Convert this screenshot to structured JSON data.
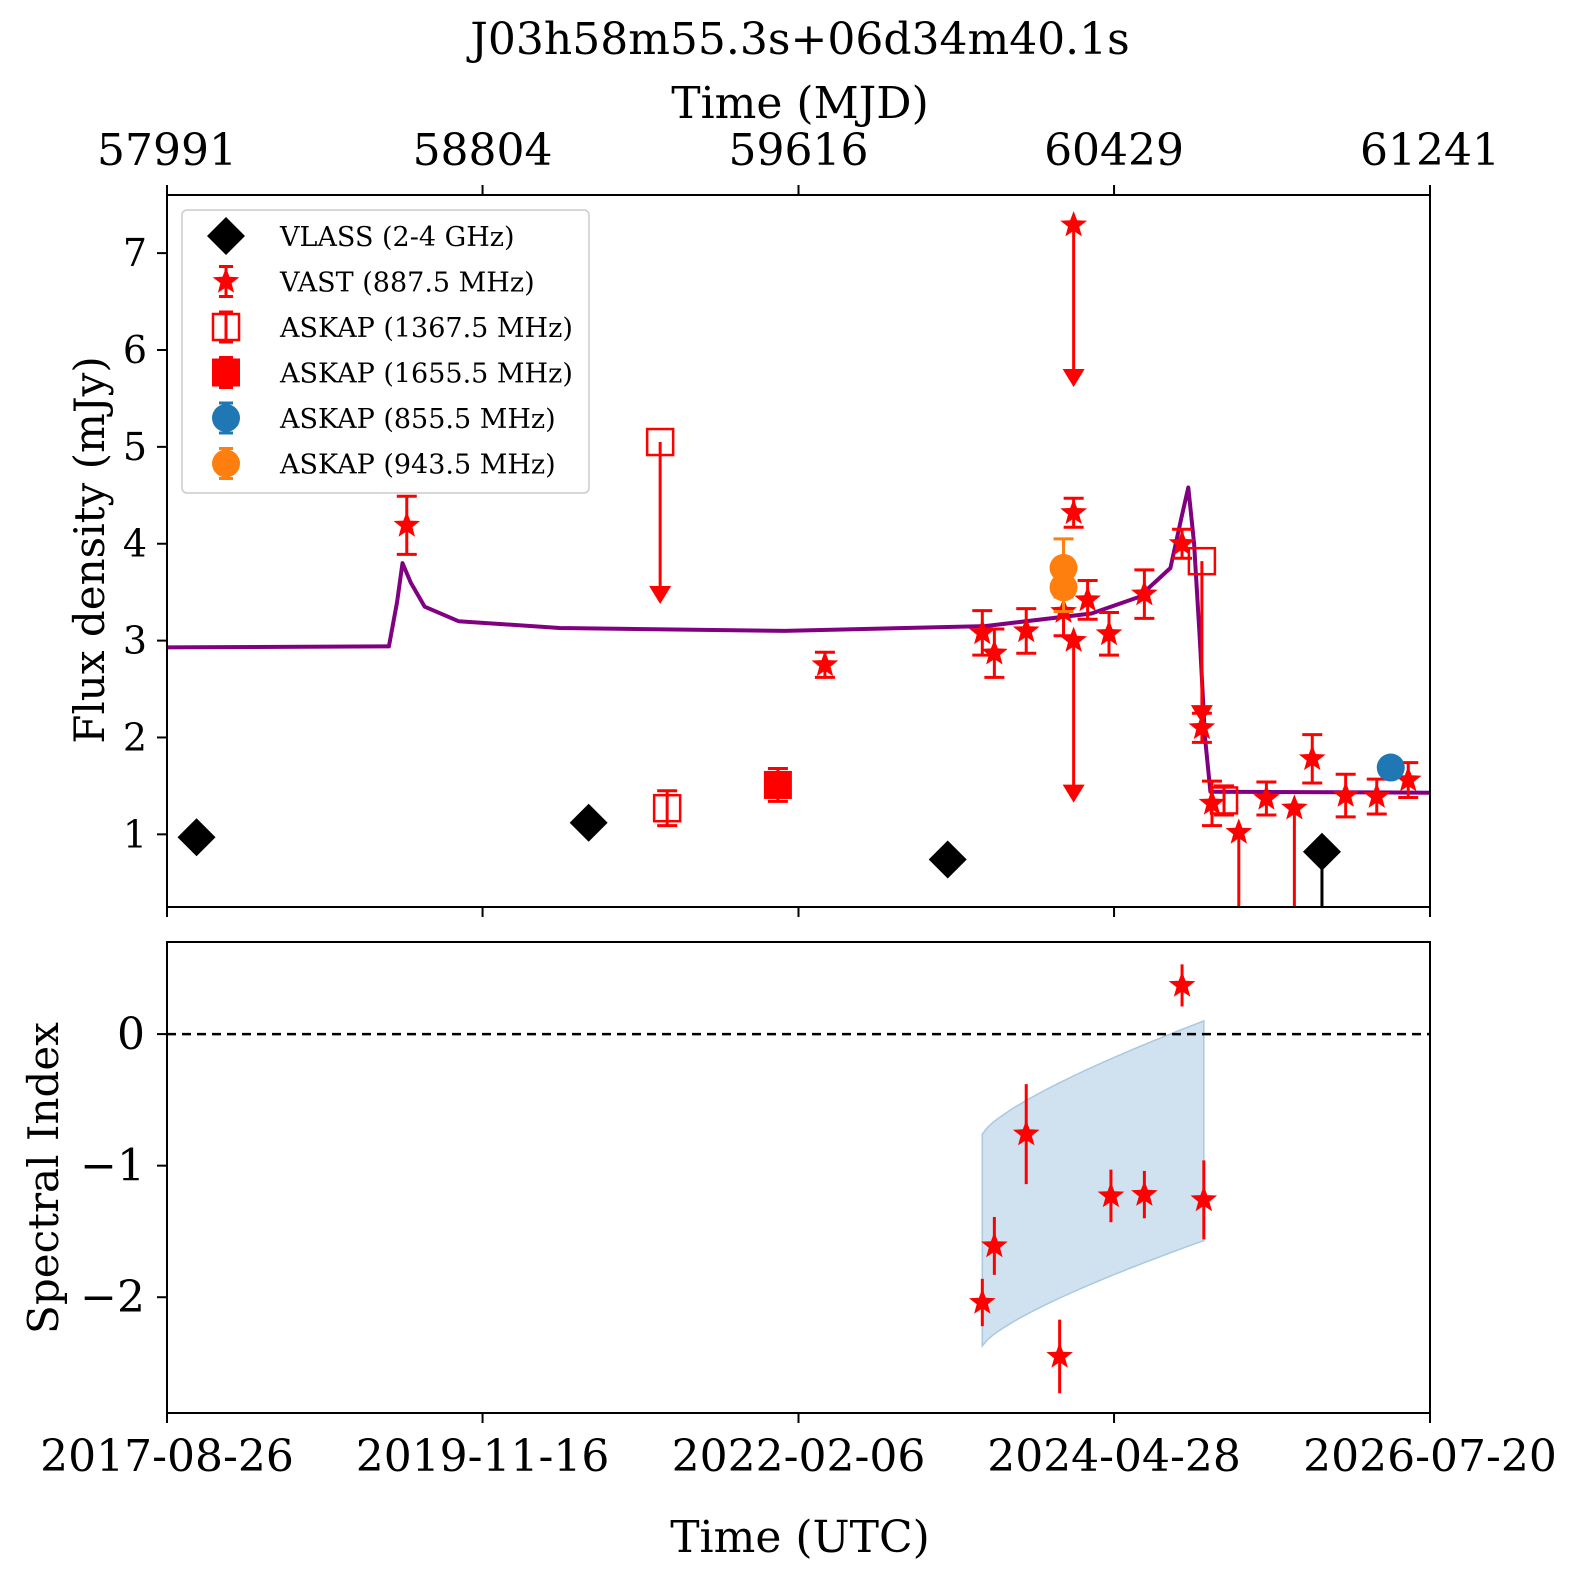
{
  "title": "J03h58m55.3s+06d34m40.1s",
  "colors": {
    "vlass": "#000000",
    "vast": "#ff0000",
    "askap": "#ff0000",
    "askap_855": "#1f77b4",
    "askap_943": "#ff7f0e",
    "model": "#800080",
    "band": "#a9c9e2"
  },
  "legend": {
    "placement": "upper-left",
    "items": [
      {
        "label": "VLASS (2-4 GHz)",
        "marker": "diamond",
        "color": "#000000"
      },
      {
        "label": "VAST (887.5 MHz)",
        "marker": "star",
        "color": "#ff0000"
      },
      {
        "label": "ASKAP (1367.5 MHz)",
        "marker": "square-open",
        "color": "#ff0000"
      },
      {
        "label": "ASKAP (1655.5 MHz)",
        "marker": "square",
        "color": "#ff0000"
      },
      {
        "label": "ASKAP (855.5 MHz)",
        "marker": "circle",
        "color": "#1f77b4"
      },
      {
        "label": "ASKAP (943.5 MHz)",
        "marker": "circle",
        "color": "#ff7f0e"
      }
    ]
  },
  "chart_data": [
    {
      "type": "scatter",
      "panel": "flux",
      "title": "J03h58m55.3s+06d34m40.1s",
      "ylabel": "Flux density (mJy)",
      "top_xlabel": "Time (MJD)",
      "top_ticks": [
        "57991",
        "58804",
        "59616",
        "60429",
        "61241"
      ],
      "xlim": [
        "2017-08-26",
        "2026-07-20"
      ],
      "ylim": [
        0.25,
        7.6
      ],
      "yticks": [
        1,
        2,
        3,
        4,
        5,
        6,
        7
      ],
      "grid": false,
      "series": [
        {
          "name": "VLASS (2-4 GHz)",
          "marker": "diamond",
          "points": [
            {
              "x": "2017-11-10",
              "y": 0.97,
              "err": 0.08
            },
            {
              "x": "2020-08-15",
              "y": 1.12,
              "err": 0.17
            },
            {
              "x": "2023-02-25",
              "y": 0.74,
              "err": 0.08
            },
            {
              "x": "2025-10-15",
              "y": 0.82,
              "upper_limit": true
            }
          ]
        },
        {
          "name": "VAST (887.5 MHz)",
          "marker": "star",
          "points": [
            {
              "x": "2019-05-05",
              "y": 4.19,
              "err": 0.3
            },
            {
              "x": "2022-04-15",
              "y": 2.75,
              "err": 0.13
            },
            {
              "x": "2023-05-25",
              "y": 3.08,
              "err": 0.23
            },
            {
              "x": "2023-06-25",
              "y": 2.87,
              "err": 0.25
            },
            {
              "x": "2023-09-15",
              "y": 3.1,
              "err": 0.23
            },
            {
              "x": "2023-12-20",
              "y": 3.3,
              "err": 0.25
            },
            {
              "x": "2024-01-15",
              "y": 7.29,
              "upper_limit": true
            },
            {
              "x": "2024-01-15",
              "y": 4.32,
              "err": 0.15
            },
            {
              "x": "2024-01-15",
              "y": 3.0,
              "upper_limit": true
            },
            {
              "x": "2024-02-20",
              "y": 3.42,
              "err": 0.2
            },
            {
              "x": "2024-04-15",
              "y": 3.07,
              "err": 0.22
            },
            {
              "x": "2024-07-15",
              "y": 3.48,
              "err": 0.25
            },
            {
              "x": "2024-10-20",
              "y": 4.0,
              "err": 0.15
            },
            {
              "x": "2024-12-10",
              "y": 2.1,
              "err": 0.15
            },
            {
              "x": "2025-01-05",
              "y": 1.32,
              "err": 0.23
            },
            {
              "x": "2025-03-15",
              "y": 1.02,
              "upper_limit": true
            },
            {
              "x": "2025-05-25",
              "y": 1.37,
              "err": 0.17
            },
            {
              "x": "2025-08-05",
              "y": 1.27,
              "upper_limit": true
            },
            {
              "x": "2025-09-20",
              "y": 1.78,
              "err": 0.25
            },
            {
              "x": "2025-12-15",
              "y": 1.4,
              "err": 0.22
            },
            {
              "x": "2026-03-05",
              "y": 1.39,
              "err": 0.18
            },
            {
              "x": "2026-05-25",
              "y": 1.56,
              "err": 0.18
            }
          ]
        },
        {
          "name": "ASKAP (1367.5 MHz)",
          "marker": "square-open",
          "points": [
            {
              "x": "2021-02-15",
              "y": 5.05,
              "upper_limit": true
            },
            {
              "x": "2021-03-05",
              "y": 1.27,
              "err": 0.18
            },
            {
              "x": "2024-12-10",
              "y": 3.82,
              "upper_limit": true
            },
            {
              "x": "2025-02-05",
              "y": 1.35,
              "err": 0.15
            }
          ]
        },
        {
          "name": "ASKAP (1655.5 MHz)",
          "marker": "square",
          "points": [
            {
              "x": "2021-12-15",
              "y": 1.51,
              "err": 0.17
            }
          ]
        },
        {
          "name": "ASKAP (855.5 MHz)",
          "marker": "circle",
          "points": [
            {
              "x": "2026-04-10",
              "y": 1.69,
              "err": 0.04
            }
          ]
        },
        {
          "name": "ASKAP (943.5 MHz)",
          "marker": "circle",
          "points": [
            {
              "x": "2023-12-20",
              "y": 3.75,
              "err": 0.3
            },
            {
              "x": "2023-12-20",
              "y": 3.55,
              "err": 0.25
            }
          ]
        },
        {
          "name": "model",
          "type": "line",
          "points": [
            {
              "x": "2017-08-26",
              "y": 2.93
            },
            {
              "x": "2019-03-20",
              "y": 2.94
            },
            {
              "x": "2019-04-10",
              "y": 3.4
            },
            {
              "x": "2019-04-24",
              "y": 3.8
            },
            {
              "x": "2019-05-15",
              "y": 3.6
            },
            {
              "x": "2019-06-20",
              "y": 3.35
            },
            {
              "x": "2019-09-15",
              "y": 3.2
            },
            {
              "x": "2020-06-01",
              "y": 3.13
            },
            {
              "x": "2022-01-01",
              "y": 3.1
            },
            {
              "x": "2023-06-01",
              "y": 3.15
            },
            {
              "x": "2024-03-01",
              "y": 3.28
            },
            {
              "x": "2024-07-01",
              "y": 3.45
            },
            {
              "x": "2024-09-20",
              "y": 3.75
            },
            {
              "x": "2024-10-20",
              "y": 4.3
            },
            {
              "x": "2024-11-05",
              "y": 4.58
            },
            {
              "x": "2024-11-20",
              "y": 4.0
            },
            {
              "x": "2024-12-05",
              "y": 3.0
            },
            {
              "x": "2024-12-18",
              "y": 2.0
            },
            {
              "x": "2025-01-01",
              "y": 1.44
            },
            {
              "x": "2026-07-20",
              "y": 1.43
            }
          ]
        }
      ]
    },
    {
      "type": "scatter",
      "panel": "spectral-index",
      "ylabel": "Spectral Index",
      "xlabel": "Time (UTC)",
      "xticks": [
        "2017-08-26",
        "2019-11-16",
        "2022-02-06",
        "2024-04-28",
        "2026-07-20"
      ],
      "xlim": [
        "2017-08-26",
        "2026-07-20"
      ],
      "ylim": [
        -2.88,
        0.7
      ],
      "yticks": [
        -2,
        -1,
        0
      ],
      "reference_line": {
        "y": 0,
        "style": "dashed"
      },
      "band": {
        "x_start": "2023-05-25",
        "x_end": "2024-12-15",
        "upper": [
          -0.76,
          0.1
        ],
        "lower": [
          -2.37,
          -1.57
        ]
      },
      "series": [
        {
          "marker": "star",
          "points": [
            {
              "x": "2023-05-25",
              "y": -2.04,
              "err": 0.18
            },
            {
              "x": "2023-06-25",
              "y": -1.61,
              "err": 0.22
            },
            {
              "x": "2023-09-15",
              "y": -0.76,
              "err": 0.38
            },
            {
              "x": "2023-12-10",
              "y": -2.45,
              "err": 0.28
            },
            {
              "x": "2024-04-20",
              "y": -1.23,
              "err": 0.2
            },
            {
              "x": "2024-07-15",
              "y": -1.22,
              "err": 0.18
            },
            {
              "x": "2024-10-20",
              "y": 0.37,
              "err": 0.16
            },
            {
              "x": "2024-12-15",
              "y": -1.26,
              "err": 0.3
            }
          ]
        }
      ]
    }
  ]
}
